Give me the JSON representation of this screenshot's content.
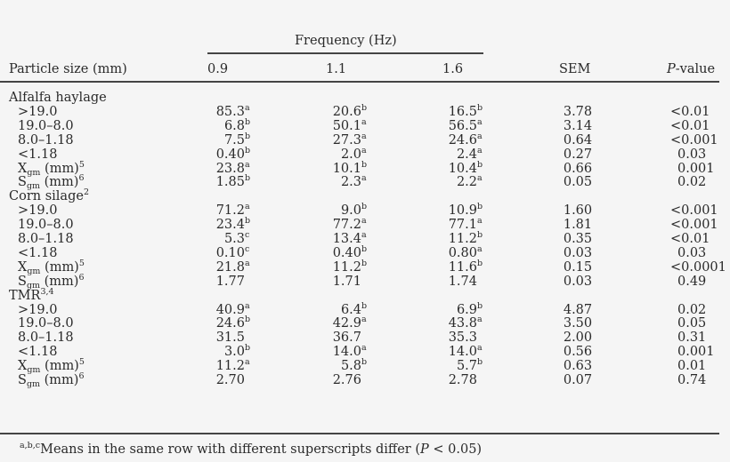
{
  "table": {
    "spanner_label": "Frequency (Hz)",
    "columns": {
      "particle_size": "Particle size (mm)",
      "f09": "0.9",
      "f11": "1.1",
      "f16": "1.6",
      "sem": "SEM",
      "p_italic": "P",
      "p_rest": "-value"
    },
    "groups": [
      {
        "name": "Alfalfa haylage",
        "name_sup": "",
        "rows": [
          {
            "label": ">19.0",
            "label_sub": "",
            "label_tail": "",
            "label_sup": "",
            "v09": "85.3",
            "s09": "a",
            "v11": "20.6",
            "s11": "b",
            "v16": "16.5",
            "s16": "b",
            "sem": "3.78",
            "p": "<0.01"
          },
          {
            "label": "19.0–8.0",
            "label_sub": "",
            "label_tail": "",
            "label_sup": "",
            "v09": "6.8",
            "s09": "b",
            "v11": "50.1",
            "s11": "a",
            "v16": "56.5",
            "s16": "a",
            "sem": "3.14",
            "p": "<0.01"
          },
          {
            "label": "8.0–1.18",
            "label_sub": "",
            "label_tail": "",
            "label_sup": "",
            "v09": "7.5",
            "s09": "b",
            "v11": "27.3",
            "s11": "a",
            "v16": "24.6",
            "s16": "a",
            "sem": "0.64",
            "p": "<0.001"
          },
          {
            "label": "<1.18",
            "label_sub": "",
            "label_tail": "",
            "label_sup": "",
            "v09": "0.40",
            "s09": "b",
            "v11": "2.0",
            "s11": "a",
            "v16": "2.4",
            "s16": "a",
            "sem": "0.27",
            "p": "0.03"
          },
          {
            "label": "X",
            "label_sub": "gm",
            "label_tail": " (mm)",
            "label_sup": "5",
            "v09": "23.8",
            "s09": "a",
            "v11": "10.1",
            "s11": "b",
            "v16": "10.4",
            "s16": "b",
            "sem": "0.66",
            "p": "0.001"
          },
          {
            "label": "S",
            "label_sub": "gm",
            "label_tail": " (mm)",
            "label_sup": "6",
            "v09": "1.85",
            "s09": "b",
            "v11": "2.3",
            "s11": "a",
            "v16": "2.2",
            "s16": "a",
            "sem": "0.05",
            "p": "0.02"
          }
        ]
      },
      {
        "name": "Corn silage",
        "name_sup": "2",
        "rows": [
          {
            "label": ">19.0",
            "label_sub": "",
            "label_tail": "",
            "label_sup": "",
            "v09": "71.2",
            "s09": "a",
            "v11": "9.0",
            "s11": "b",
            "v16": "10.9",
            "s16": "b",
            "sem": "1.60",
            "p": "<0.001"
          },
          {
            "label": "19.0–8.0",
            "label_sub": "",
            "label_tail": "",
            "label_sup": "",
            "v09": "23.4",
            "s09": "b",
            "v11": "77.2",
            "s11": "a",
            "v16": "77.1",
            "s16": "a",
            "sem": "1.81",
            "p": "<0.001"
          },
          {
            "label": "8.0–1.18",
            "label_sub": "",
            "label_tail": "",
            "label_sup": "",
            "v09": "5.3",
            "s09": "c",
            "v11": "13.4",
            "s11": "a",
            "v16": "11.2",
            "s16": "b",
            "sem": "0.35",
            "p": "<0.01"
          },
          {
            "label": "<1.18",
            "label_sub": "",
            "label_tail": "",
            "label_sup": "",
            "v09": "0.10",
            "s09": "c",
            "v11": "0.40",
            "s11": "b",
            "v16": "0.80",
            "s16": "a",
            "sem": "0.03",
            "p": "0.03"
          },
          {
            "label": "X",
            "label_sub": "gm",
            "label_tail": " (mm)",
            "label_sup": "5",
            "v09": "21.8",
            "s09": "a",
            "v11": "11.2",
            "s11": "b",
            "v16": "11.6",
            "s16": "b",
            "sem": "0.15",
            "p": "<0.0001"
          },
          {
            "label": "S",
            "label_sub": "gm",
            "label_tail": " (mm)",
            "label_sup": "6",
            "v09": "1.77",
            "s09": "",
            "v11": "1.71",
            "s11": "",
            "v16": "1.74",
            "s16": "",
            "sem": "0.03",
            "p": "0.49"
          }
        ]
      },
      {
        "name": "TMR",
        "name_sup": "3,4",
        "rows": [
          {
            "label": ">19.0",
            "label_sub": "",
            "label_tail": "",
            "label_sup": "",
            "v09": "40.9",
            "s09": "a",
            "v11": "6.4",
            "s11": "b",
            "v16": "6.9",
            "s16": "b",
            "sem": "4.87",
            "p": "0.02"
          },
          {
            "label": "19.0–8.0",
            "label_sub": "",
            "label_tail": "",
            "label_sup": "",
            "v09": "24.6",
            "s09": "b",
            "v11": "42.9",
            "s11": "a",
            "v16": "43.8",
            "s16": "a",
            "sem": "3.50",
            "p": "0.05"
          },
          {
            "label": "8.0–1.18",
            "label_sub": "",
            "label_tail": "",
            "label_sup": "",
            "v09": "31.5",
            "s09": "",
            "v11": "36.7",
            "s11": "",
            "v16": "35.3",
            "s16": "",
            "sem": "2.00",
            "p": "0.31"
          },
          {
            "label": "<1.18",
            "label_sub": "",
            "label_tail": "",
            "label_sup": "",
            "v09": "3.0",
            "s09": "b",
            "v11": "14.0",
            "s11": "a",
            "v16": "14.0",
            "s16": "a",
            "sem": "0.56",
            "p": "0.001"
          },
          {
            "label": "X",
            "label_sub": "gm",
            "label_tail": " (mm)",
            "label_sup": "5",
            "v09": "11.2",
            "s09": "a",
            "v11": "5.8",
            "s11": "b",
            "v16": "5.7",
            "s16": "b",
            "sem": "0.63",
            "p": "0.01"
          },
          {
            "label": "S",
            "label_sub": "gm",
            "label_tail": " (mm)",
            "label_sup": "6",
            "v09": "2.70",
            "s09": "",
            "v11": "2.76",
            "s11": "",
            "v16": "2.78",
            "s16": "",
            "sem": "0.07",
            "p": "0.74"
          }
        ]
      }
    ],
    "footnote": {
      "sup": "a,b,c",
      "text": "Means in the same row with different superscripts differ (",
      "p_italic": "P",
      "tail": " < 0.05)"
    }
  }
}
